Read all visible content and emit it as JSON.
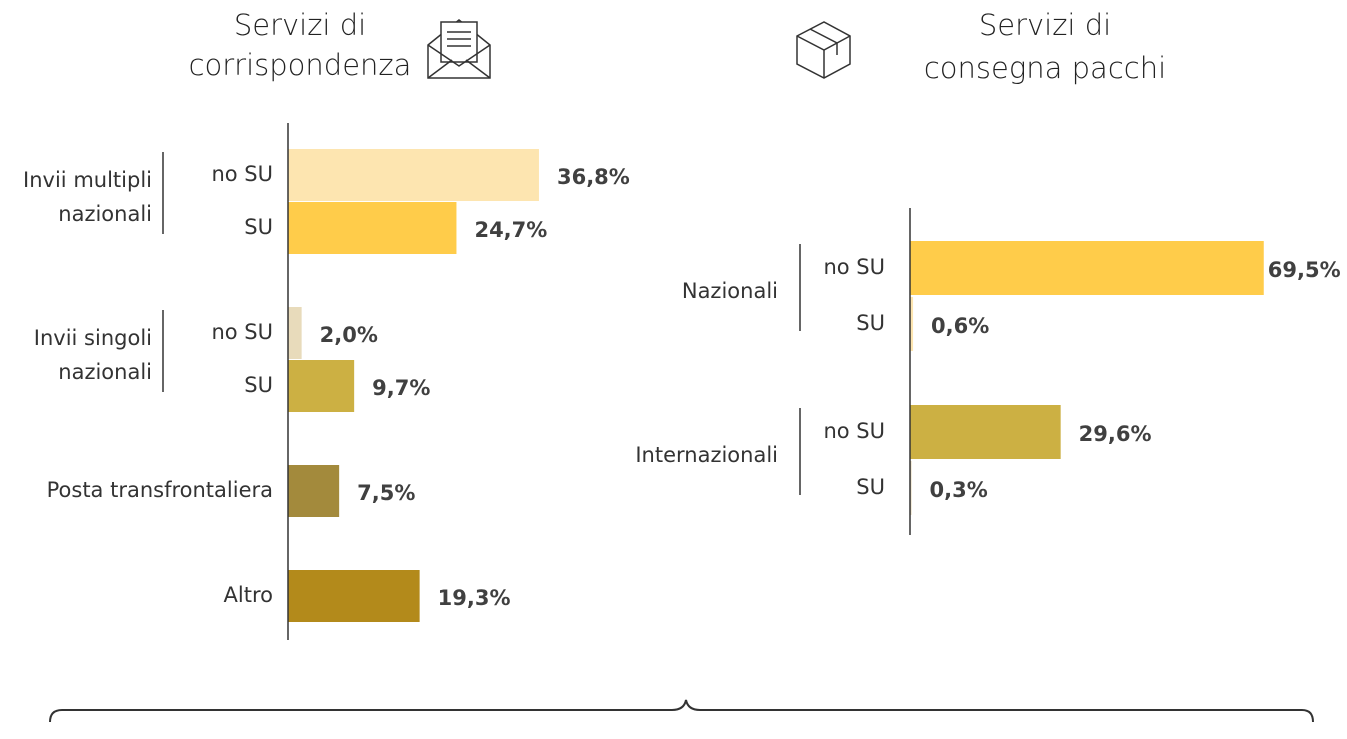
{
  "chart_data": [
    {
      "type": "bar",
      "orientation": "horizontal",
      "title": [
        "Servizi di",
        "corrispondenza"
      ],
      "groups": [
        {
          "name": [
            "Invii multipli",
            "nazionali"
          ],
          "categories": [
            "no SU",
            "SU"
          ],
          "values": [
            36.8,
            24.7
          ],
          "value_labels": [
            "36,8%",
            "24,7%"
          ],
          "colors": [
            "#fde5b0",
            "#ffcc4a"
          ]
        },
        {
          "name": [
            "Invii singoli",
            "nazionali"
          ],
          "categories": [
            "no SU",
            "SU"
          ],
          "values": [
            2.0,
            9.7
          ],
          "value_labels": [
            "2,0%",
            "9,7%"
          ],
          "colors": [
            "#e8dbbb",
            "#ccb043"
          ]
        },
        {
          "categories": [
            "Posta transfrontaliera"
          ],
          "values": [
            7.5
          ],
          "value_labels": [
            "7,5%"
          ],
          "colors": [
            "#a38a3c"
          ]
        },
        {
          "categories": [
            "Altro"
          ],
          "values": [
            19.3
          ],
          "value_labels": [
            "19,3%"
          ],
          "colors": [
            "#b38a1b"
          ]
        }
      ]
    },
    {
      "type": "bar",
      "orientation": "horizontal",
      "title": [
        "Servizi di",
        "consegna pacchi"
      ],
      "groups": [
        {
          "name": [
            "Nazionali"
          ],
          "categories": [
            "no SU",
            "SU"
          ],
          "values": [
            69.5,
            0.6
          ],
          "value_labels": [
            "69,5%",
            "0,6%"
          ],
          "colors": [
            "#ffcc4a",
            "#fde5b0"
          ]
        },
        {
          "name": [
            "Internazionali"
          ],
          "categories": [
            "no SU",
            "SU"
          ],
          "values": [
            29.6,
            0.3
          ],
          "value_labels": [
            "29,6%",
            "0,3%"
          ],
          "colors": [
            "#ccb043",
            "#e8dbbb"
          ]
        }
      ]
    }
  ]
}
